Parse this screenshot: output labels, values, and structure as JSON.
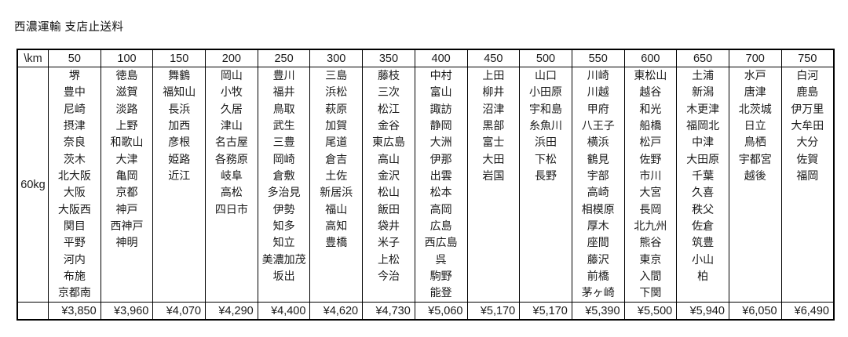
{
  "title": "西濃運輸 支店止送料",
  "table": {
    "corner_label": "\\km",
    "weight_label": "60kg",
    "columns": [
      {
        "distance_km": "50",
        "cities": [
          "堺",
          "豊中",
          "尼崎",
          "摂津",
          "奈良",
          "茨木",
          "北大阪",
          "大阪",
          "大阪西",
          "関目",
          "平野",
          "河内",
          "布施",
          "京都南"
        ],
        "price": "¥3,850"
      },
      {
        "distance_km": "100",
        "cities": [
          "徳島",
          "滋賀",
          "淡路",
          "上野",
          "和歌山",
          "大津",
          "亀岡",
          "京都",
          "神戸",
          "西神戸",
          "神明"
        ],
        "price": "¥3,960"
      },
      {
        "distance_km": "150",
        "cities": [
          "舞鶴",
          "福知山",
          "長浜",
          "加西",
          "彦根",
          "姫路",
          "近江"
        ],
        "price": "¥4,070"
      },
      {
        "distance_km": "200",
        "cities": [
          "岡山",
          "小牧",
          "久居",
          "津山",
          "名古屋",
          "各務原",
          "岐阜",
          "高松",
          "四日市"
        ],
        "price": "¥4,290"
      },
      {
        "distance_km": "250",
        "cities": [
          "豊川",
          "福井",
          "鳥取",
          "武生",
          "三豊",
          "岡崎",
          "倉敷",
          "多治見",
          "伊勢",
          "知多",
          "知立",
          "美濃加茂",
          "坂出"
        ],
        "price": "¥4,400"
      },
      {
        "distance_km": "300",
        "cities": [
          "三島",
          "浜松",
          "萩原",
          "加賀",
          "尾道",
          "倉吉",
          "土佐",
          "新居浜",
          "福山",
          "高知",
          "豊橋"
        ],
        "price": "¥4,620"
      },
      {
        "distance_km": "350",
        "cities": [
          "藤枝",
          "三次",
          "松江",
          "金谷",
          "東広島",
          "高山",
          "金沢",
          "松山",
          "飯田",
          "袋井",
          "米子",
          "上松",
          "今治"
        ],
        "price": "¥4,730"
      },
      {
        "distance_km": "400",
        "cities": [
          "中村",
          "富山",
          "諏訪",
          "静岡",
          "大洲",
          "伊那",
          "出雲",
          "松本",
          "高岡",
          "広島",
          "西広島",
          "呉",
          "駒野",
          "能登"
        ],
        "price": "¥5,060"
      },
      {
        "distance_km": "450",
        "cities": [
          "上田",
          "柳井",
          "沼津",
          "黒部",
          "富士",
          "大田",
          "岩国"
        ],
        "price": "¥5,170"
      },
      {
        "distance_km": "500",
        "cities": [
          "山口",
          "小田原",
          "宇和島",
          "糸魚川",
          "浜田",
          "下松",
          "長野"
        ],
        "price": "¥5,170"
      },
      {
        "distance_km": "550",
        "cities": [
          "川崎",
          "川越",
          "甲府",
          "八王子",
          "横浜",
          "鶴見",
          "宇部",
          "高崎",
          "相模原",
          "厚木",
          "座間",
          "藤沢",
          "前橋",
          "茅ヶ崎"
        ],
        "price": "¥5,390"
      },
      {
        "distance_km": "600",
        "cities": [
          "東松山",
          "越谷",
          "和光",
          "船橋",
          "松戸",
          "佐野",
          "市川",
          "大宮",
          "長岡",
          "北九州",
          "熊谷",
          "東京",
          "入間",
          "下関"
        ],
        "price": "¥5,500"
      },
      {
        "distance_km": "650",
        "cities": [
          "土浦",
          "新潟",
          "木更津",
          "福岡北",
          "中津",
          "大田原",
          "千葉",
          "久喜",
          "秩父",
          "佐倉",
          "筑豊",
          "小山",
          "柏"
        ],
        "price": "¥5,940"
      },
      {
        "distance_km": "700",
        "cities": [
          "水戸",
          "唐津",
          "北茨城",
          "日立",
          "鳥栖",
          "宇都宮",
          "越後"
        ],
        "price": "¥6,050"
      },
      {
        "distance_km": "750",
        "cities": [
          "白河",
          "鹿島",
          "伊万里",
          "大牟田",
          "大分",
          "佐賀",
          "福岡"
        ],
        "price": "¥6,490"
      }
    ]
  }
}
